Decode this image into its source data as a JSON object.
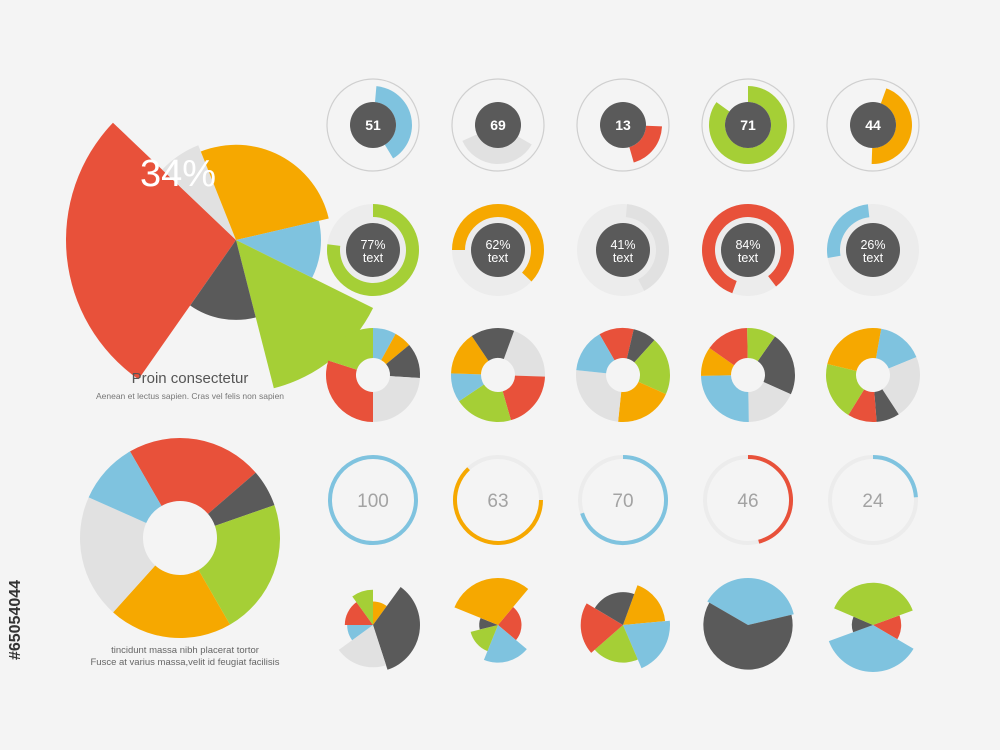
{
  "colors": {
    "red": "#e8513a",
    "orange": "#f6a800",
    "green": "#a5cf36",
    "blue": "#7fc3df",
    "gray": "#e1e1e1",
    "dark": "#5a5a5a",
    "track": "#ececec",
    "ring_border": "#cfcfcf",
    "text_gray": "#a3a3a3"
  },
  "captions": {
    "title": "Proin consectetur",
    "subtitle": "Aenean et lectus sapien. Cras vel felis non sapien",
    "line1": "tincidunt massa nibh placerat tortor",
    "line2": "Fusce at varius massa,velit id feugiat facilisis",
    "side_id": "#65054044"
  },
  "chart_data": [
    {
      "type": "pie",
      "label": "34%",
      "slices": [
        {
          "value": 20,
          "radius": 1.0,
          "color": "red"
        },
        {
          "value": 5,
          "radius": 0.6,
          "color": "gray"
        },
        {
          "value": 20,
          "radius": 0.56,
          "color": "orange"
        },
        {
          "value": 8,
          "radius": 0.5,
          "color": "blue"
        },
        {
          "value": 10,
          "radius": 0.9,
          "color": "green"
        },
        {
          "value": 10,
          "radius": 0.47,
          "color": "dark"
        }
      ]
    },
    {
      "type": "donut",
      "slices": [
        {
          "value": 22,
          "color": "red"
        },
        {
          "value": 6,
          "color": "dark"
        },
        {
          "value": 22,
          "color": "green"
        },
        {
          "value": 20,
          "color": "orange"
        },
        {
          "value": 20,
          "color": "gray"
        },
        {
          "value": 10,
          "color": "blue"
        }
      ]
    },
    {
      "type": "pie",
      "row": "gauge-dark-center",
      "items": [
        {
          "label": "51",
          "percent": 40,
          "color": "blue"
        },
        {
          "label": "69",
          "percent": 35,
          "color": "gray"
        },
        {
          "label": "13",
          "percent": 20,
          "color": "red"
        },
        {
          "label": "71",
          "percent": 85,
          "color": "green"
        },
        {
          "label": "44",
          "percent": 45,
          "color": "orange"
        }
      ]
    },
    {
      "type": "pie",
      "row": "percent-ring",
      "sub": "text",
      "items": [
        {
          "label": "77%",
          "percent": 77,
          "color": "green"
        },
        {
          "label": "62%",
          "percent": 62,
          "color": "orange"
        },
        {
          "label": "41%",
          "percent": 41,
          "color": "gray"
        },
        {
          "label": "84%",
          "percent": 84,
          "color": "red"
        },
        {
          "label": "26%",
          "percent": 26,
          "color": "blue"
        }
      ]
    },
    {
      "type": "donut",
      "row": "multi-donut",
      "items": [
        {
          "slices": [
            {
              "value": 8,
              "color": "blue"
            },
            {
              "value": 6,
              "color": "orange"
            },
            {
              "value": 12,
              "color": "dark"
            },
            {
              "value": 24,
              "color": "gray"
            },
            {
              "value": 30,
              "color": "red"
            },
            {
              "value": 20,
              "color": "green"
            }
          ]
        },
        {
          "slices": [
            {
              "value": 20,
              "color": "gray"
            },
            {
              "value": 20,
              "color": "red"
            },
            {
              "value": 20,
              "color": "green"
            },
            {
              "value": 10,
              "color": "blue"
            },
            {
              "value": 15,
              "color": "orange"
            },
            {
              "value": 15,
              "color": "dark"
            }
          ]
        },
        {
          "slices": [
            {
              "value": 12,
              "color": "red"
            },
            {
              "value": 8,
              "color": "dark"
            },
            {
              "value": 20,
              "color": "green"
            },
            {
              "value": 20,
              "color": "orange"
            },
            {
              "value": 25,
              "color": "gray"
            },
            {
              "value": 15,
              "color": "blue"
            }
          ]
        },
        {
          "slices": [
            {
              "value": 22,
              "color": "dark"
            },
            {
              "value": 18,
              "color": "gray"
            },
            {
              "value": 25,
              "color": "blue"
            },
            {
              "value": 10,
              "color": "orange"
            },
            {
              "value": 15,
              "color": "red"
            },
            {
              "value": 10,
              "color": "green"
            }
          ]
        },
        {
          "slices": [
            {
              "value": 16,
              "color": "blue"
            },
            {
              "value": 22,
              "color": "gray"
            },
            {
              "value": 8,
              "color": "dark"
            },
            {
              "value": 10,
              "color": "red"
            },
            {
              "value": 20,
              "color": "green"
            },
            {
              "value": 24,
              "color": "orange"
            }
          ]
        }
      ]
    },
    {
      "type": "pie",
      "row": "thin-ring",
      "items": [
        {
          "label": "100",
          "percent": 100,
          "color": "blue"
        },
        {
          "label": "63",
          "percent": 63,
          "color": "orange"
        },
        {
          "label": "70",
          "percent": 70,
          "color": "blue"
        },
        {
          "label": "46",
          "percent": 46,
          "color": "red"
        },
        {
          "label": "24",
          "percent": 24,
          "color": "blue"
        }
      ]
    },
    {
      "type": "pie",
      "row": "exploded-pie",
      "items": [
        {
          "slices": [
            {
              "value": 10,
              "radius": 0.5,
              "color": "orange"
            },
            {
              "value": 35,
              "radius": 1.0,
              "color": "dark"
            },
            {
              "value": 20,
              "radius": 0.9,
              "color": "gray"
            },
            {
              "value": 10,
              "radius": 0.55,
              "color": "blue"
            },
            {
              "value": 15,
              "radius": 0.6,
              "color": "red"
            },
            {
              "value": 10,
              "radius": 0.75,
              "color": "green"
            }
          ]
        },
        {
          "slices": [
            {
              "value": 25,
              "radius": 0.5,
              "color": "red"
            },
            {
              "value": 20,
              "radius": 0.8,
              "color": "blue"
            },
            {
              "value": 15,
              "radius": 0.6,
              "color": "green"
            },
            {
              "value": 10,
              "radius": 0.4,
              "color": "dark"
            },
            {
              "value": 30,
              "radius": 1.0,
              "color": "orange"
            }
          ]
        },
        {
          "slices": [
            {
              "value": 18,
              "radius": 0.9,
              "color": "orange"
            },
            {
              "value": 20,
              "radius": 1.0,
              "color": "blue"
            },
            {
              "value": 20,
              "radius": 0.8,
              "color": "green"
            },
            {
              "value": 20,
              "radius": 0.9,
              "color": "red"
            },
            {
              "value": 22,
              "radius": 0.7,
              "color": "dark"
            }
          ]
        },
        {
          "slices": [
            {
              "value": 38,
              "radius": 1.0,
              "color": "blue"
            },
            {
              "value": 62,
              "radius": 0.95,
              "color": "dark"
            }
          ]
        },
        {
          "slices": [
            {
              "value": 14,
              "radius": 0.6,
              "color": "red"
            },
            {
              "value": 36,
              "radius": 1.0,
              "color": "blue"
            },
            {
              "value": 12,
              "radius": 0.45,
              "color": "dark"
            },
            {
              "value": 38,
              "radius": 0.9,
              "color": "green"
            }
          ]
        }
      ]
    }
  ]
}
